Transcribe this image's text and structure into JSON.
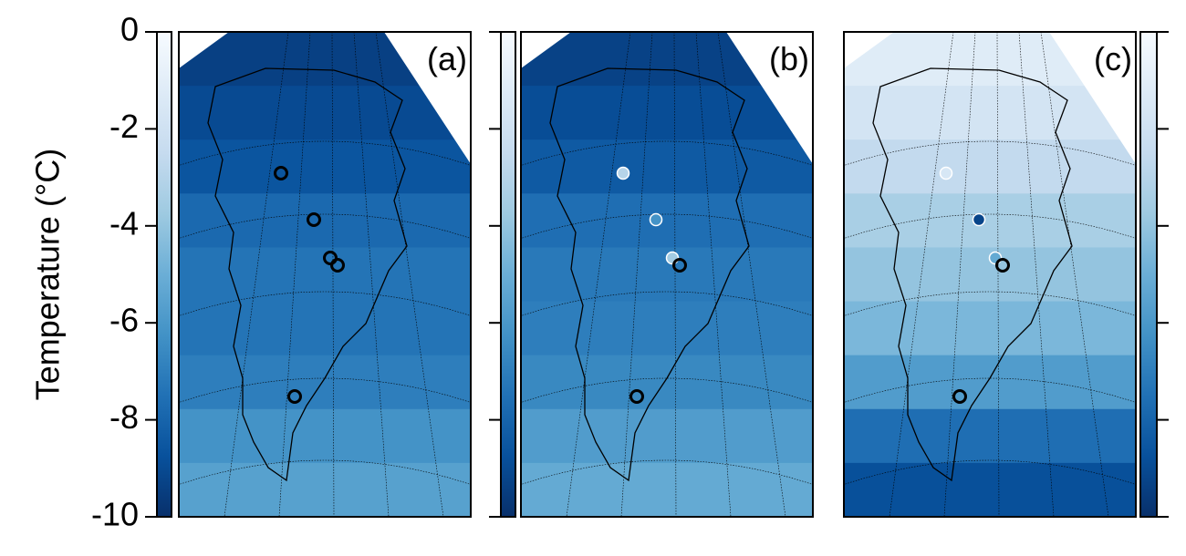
{
  "chart_data": {
    "type": "map",
    "ylabel": "Temperature (°C)",
    "ylim": [
      -10,
      0
    ],
    "yticks": [
      0,
      -2,
      -4,
      -6,
      -8,
      -10
    ],
    "colormap": [
      "#08306b",
      "#08519c",
      "#2171b5",
      "#4292c6",
      "#6baed6",
      "#9ecae1",
      "#c6dbef",
      "#deebf7",
      "#f7fbff"
    ],
    "panels": [
      {
        "label": "(a)",
        "field": [
          -9.4,
          -9.0,
          -8.6,
          -7.8,
          -7.4,
          -7.4,
          -7.0,
          -6.2,
          -5.6
        ],
        "sites": [
          null,
          null,
          null,
          null,
          null
        ]
      },
      {
        "label": "(b)",
        "field": [
          -9.3,
          -8.9,
          -8.4,
          -7.6,
          -7.2,
          -7.0,
          -6.6,
          -5.8,
          -5.2
        ],
        "sites": [
          -3.0,
          -6.2,
          -3.6,
          null,
          null
        ]
      },
      {
        "label": "(c)",
        "field": [
          -1.2,
          -1.8,
          -2.6,
          -3.4,
          -4.0,
          -4.6,
          -5.8,
          -7.6,
          -8.8
        ],
        "sites": [
          -1.6,
          -9.2,
          -5.2,
          null,
          null
        ]
      }
    ]
  }
}
